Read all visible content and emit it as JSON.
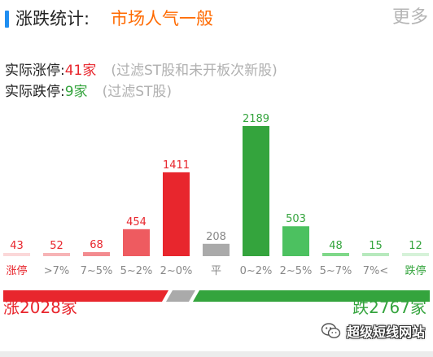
{
  "header": {
    "title": "涨跌统计:",
    "mood": "市场人气一般",
    "more": "更多"
  },
  "stats": {
    "up_label": "实际涨停:",
    "up_value": "41家",
    "up_note": "(过滤ST股和未开板次新股)",
    "down_label": "实际跌停:",
    "down_value": "9家",
    "down_note": "(过滤ST股)"
  },
  "chart_data": {
    "type": "bar",
    "categories": [
      "涨停",
      ">7%",
      "7~5%",
      "5~2%",
      "2~0%",
      "平",
      "0~2%",
      "2~5%",
      "5~7%",
      "7%<",
      "跌停"
    ],
    "values": [
      43,
      52,
      68,
      454,
      1411,
      208,
      2189,
      503,
      48,
      15,
      12
    ],
    "value_labels": [
      "43",
      "52",
      "68",
      "454",
      "1411",
      "208",
      "2189",
      "503",
      "48",
      "15",
      "12"
    ],
    "bar_colors": [
      "#fbd8d9",
      "#f7b4b6",
      "#f38b8f",
      "#ee5b60",
      "#e8262d",
      "#aaaaaa",
      "#34a43d",
      "#4cc160",
      "#7fd889",
      "#b7e9bd",
      "#d6f2d9"
    ],
    "label_colors": [
      "#e8262d",
      "#e8262d",
      "#e8262d",
      "#e8262d",
      "#e8262d",
      "#888888",
      "#34a43d",
      "#34a43d",
      "#34a43d",
      "#34a43d",
      "#34a43d"
    ],
    "category_colors": [
      "#e8262d",
      "#888888",
      "#888888",
      "#888888",
      "#888888",
      "#888888",
      "#888888",
      "#888888",
      "#888888",
      "#888888",
      "#34a43d"
    ],
    "ylim": [
      0,
      2189
    ],
    "grid": false,
    "legend": "none"
  },
  "bottom": {
    "total_up": "涨2028家",
    "total_down": "跌2767家",
    "up_color": "#e8262d",
    "flat_color": "#aaaaaa",
    "down_color": "#34a43d"
  },
  "watermark": {
    "text": "超级短线网站",
    "icon": "wechat-icon"
  }
}
